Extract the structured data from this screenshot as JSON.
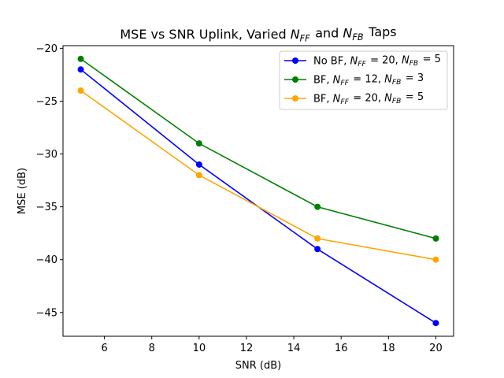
{
  "chart_data": {
    "type": "line",
    "title": "MSE vs SNR Uplink, Varied N_FF and N_FB Taps",
    "xlabel": "SNR (dB)",
    "ylabel": "MSE (dB)",
    "xlim": [
      4.25,
      20.75
    ],
    "ylim": [
      -47.25,
      -19.75
    ],
    "xticks": [
      6,
      8,
      10,
      12,
      14,
      16,
      18,
      20
    ],
    "yticks": [
      -45,
      -40,
      -35,
      -30,
      -25,
      -20
    ],
    "grid": false,
    "legend_position": "top-right",
    "x": [
      5,
      10,
      15,
      20
    ],
    "series": [
      {
        "name": "No BF, N_FF = 20, N_FB = 5",
        "color": "#0000ff",
        "values": [
          -22,
          -31,
          -39,
          -46
        ]
      },
      {
        "name": "BF, N_FF = 12, N_FB = 3",
        "color": "#008000",
        "values": [
          -21,
          -29,
          -35,
          -38
        ]
      },
      {
        "name": "BF, N_FF = 20, N_FB = 5",
        "color": "#ffa500",
        "values": [
          -24,
          -32,
          -38,
          -40
        ]
      }
    ]
  }
}
